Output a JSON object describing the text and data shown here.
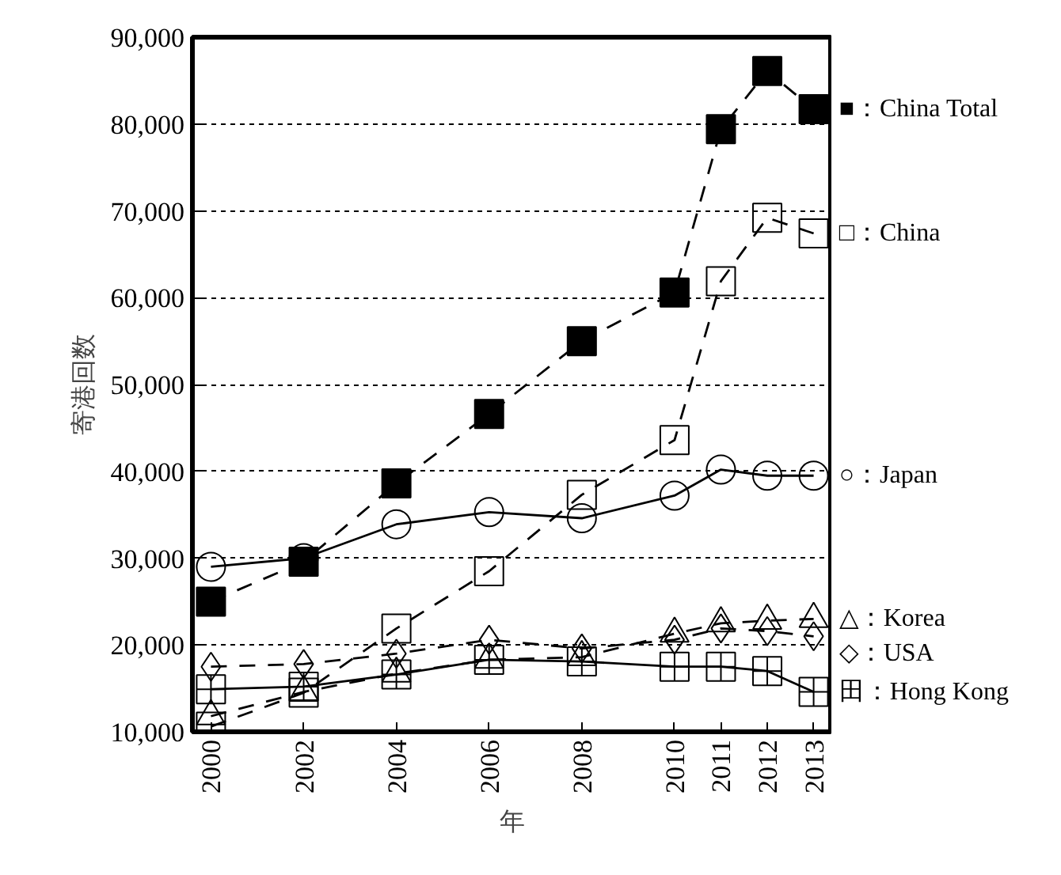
{
  "chart_data": {
    "type": "line",
    "xlabel": "年",
    "ylabel": "寄港回数",
    "x": [
      2000,
      2002,
      2004,
      2006,
      2008,
      2010,
      2011,
      2012,
      2013
    ],
    "xlim": [
      1999.6,
      2013.4
    ],
    "xticks": [
      2000,
      2002,
      2004,
      2006,
      2008,
      2010,
      2011,
      2012,
      2013
    ],
    "ylim": [
      10000,
      90000
    ],
    "yticks": [
      {
        "value": 10000,
        "label": "10,000"
      },
      {
        "value": 20000,
        "label": "20,000"
      },
      {
        "value": 30000,
        "label": "30,000"
      },
      {
        "value": 40000,
        "label": "40,000"
      },
      {
        "value": 50000,
        "label": "50,000"
      },
      {
        "value": 60000,
        "label": "60,000"
      },
      {
        "value": 70000,
        "label": "70,000"
      },
      {
        "value": 80000,
        "label": "80,000"
      },
      {
        "value": 90000,
        "label": "90,000"
      }
    ],
    "grid": "y",
    "series": [
      {
        "name": "■：China Total",
        "color": "#000000",
        "marker": "square",
        "line_style": "dashed",
        "values": [
          25000,
          29600,
          38600,
          46600,
          55000,
          60600,
          79400,
          86100,
          81700
        ]
      },
      {
        "name": "□：China",
        "color": "#000000",
        "marker": "square_open",
        "line_style": "dashed",
        "values": [
          10600,
          14500,
          21900,
          28500,
          37300,
          43600,
          61900,
          69200,
          67400
        ]
      },
      {
        "name": "○：Japan",
        "color": "#000000",
        "marker": "circle",
        "line_style": "solid",
        "values": [
          29000,
          30000,
          33900,
          35300,
          34600,
          37200,
          40200,
          39500,
          39500
        ]
      },
      {
        "name": "△：Korea",
        "color": "#000000",
        "marker": "triangle",
        "line_style": "dashed",
        "values": [
          11800,
          14600,
          16700,
          18300,
          18600,
          21300,
          22500,
          22800,
          23000
        ]
      },
      {
        "name": "◇：USA",
        "color": "#000000",
        "marker": "diamond",
        "line_style": "dashed",
        "values": [
          17500,
          17800,
          19000,
          20600,
          19600,
          20600,
          21900,
          21600,
          21000
        ]
      },
      {
        "name": "田：Hong Kong",
        "color": "#000000",
        "marker": "cross",
        "line_style": "solid",
        "values": [
          14900,
          15200,
          16600,
          18300,
          18100,
          17500,
          17500,
          17000,
          14600
        ]
      }
    ]
  }
}
